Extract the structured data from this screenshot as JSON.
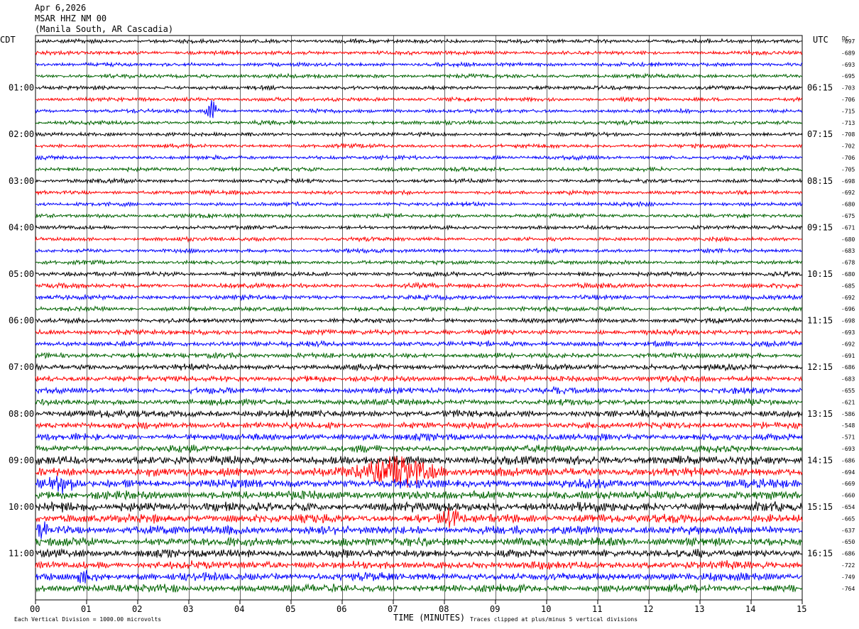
{
  "header": {
    "date": "Apr 6,2026",
    "station": "MSAR HHZ NM 00",
    "location": "(Manila South, AR Cascadia)"
  },
  "left_axis_title": "CDT",
  "right_axis_title": "UTC",
  "dc_title": "DC",
  "footer": {
    "scale_note": "Each Vertical Division = 1000.00 microvolts",
    "clip_note": "Traces clipped at plus/minus 5 vertical divisions",
    "xlabel": "TIME (MINUTES)"
  },
  "trace_colors": [
    "#000000",
    "#ff0000",
    "#0000ff",
    "#006400"
  ],
  "chart_data": {
    "type": "line",
    "xlabel": "TIME (MINUTES)",
    "xlim": [
      0,
      15
    ],
    "x_ticks": [
      "00",
      "01",
      "02",
      "03",
      "04",
      "05",
      "06",
      "07",
      "08",
      "09",
      "10",
      "11",
      "12",
      "13",
      "14",
      "15"
    ],
    "trace_count": 48,
    "minutes_per_trace": 15,
    "left_time_labels": [
      "01:00",
      "02:00",
      "03:00",
      "04:00",
      "05:00",
      "06:00",
      "07:00",
      "08:00",
      "09:00",
      "10:00",
      "11:00"
    ],
    "right_time_labels": [
      "06:15",
      "07:15",
      "08:15",
      "09:15",
      "10:15",
      "11:15",
      "12:15",
      "13:15",
      "14:15",
      "15:15",
      "16:15"
    ],
    "dc_offsets": [
      "-697",
      "-689",
      "-693",
      "-695",
      "-703",
      "-706",
      "-715",
      "-713",
      "-708",
      "-702",
      "-706",
      "-705",
      "-698",
      "-692",
      "-680",
      "-675",
      "-671",
      "-680",
      "-683",
      "-678",
      "-680",
      "-685",
      "-692",
      "-696",
      "-698",
      "-693",
      "-692",
      "-691",
      "-686",
      "-683",
      "-655",
      "-621",
      "-586",
      "-548",
      "-571",
      "-693",
      "-686",
      "-694",
      "-669",
      "-660",
      "-654",
      "-665",
      "-637",
      "-650",
      "-686",
      "-722",
      "-749",
      "-764"
    ],
    "noise_levels": [
      3,
      3,
      3,
      3,
      3,
      3,
      3,
      3,
      3,
      3,
      3,
      3,
      3,
      3,
      3,
      3,
      3,
      3,
      3,
      3,
      3.5,
      3.5,
      3.5,
      3.5,
      3.5,
      4,
      4,
      4,
      4.5,
      4.5,
      4.5,
      4.5,
      5.5,
      5,
      5,
      5,
      6.5,
      6.5,
      6.5,
      6.5,
      7,
      6.5,
      6.5,
      6.5,
      6,
      6,
      6,
      6
    ],
    "events": [
      {
        "trace": 6,
        "minute": 3.45,
        "amplitude": 12,
        "duration_min": 0.25
      },
      {
        "trace": 37,
        "minute": 7.1,
        "amplitude": 18,
        "duration_min": 1.6
      },
      {
        "trace": 41,
        "minute": 8.1,
        "amplitude": 12,
        "duration_min": 0.45
      },
      {
        "trace": 38,
        "minute": 0.5,
        "amplitude": 9,
        "duration_min": 0.5
      },
      {
        "trace": 42,
        "minute": 0.15,
        "amplitude": 9,
        "duration_min": 0.3
      },
      {
        "trace": 46,
        "minute": 1.0,
        "amplitude": 8,
        "duration_min": 0.4
      }
    ]
  }
}
